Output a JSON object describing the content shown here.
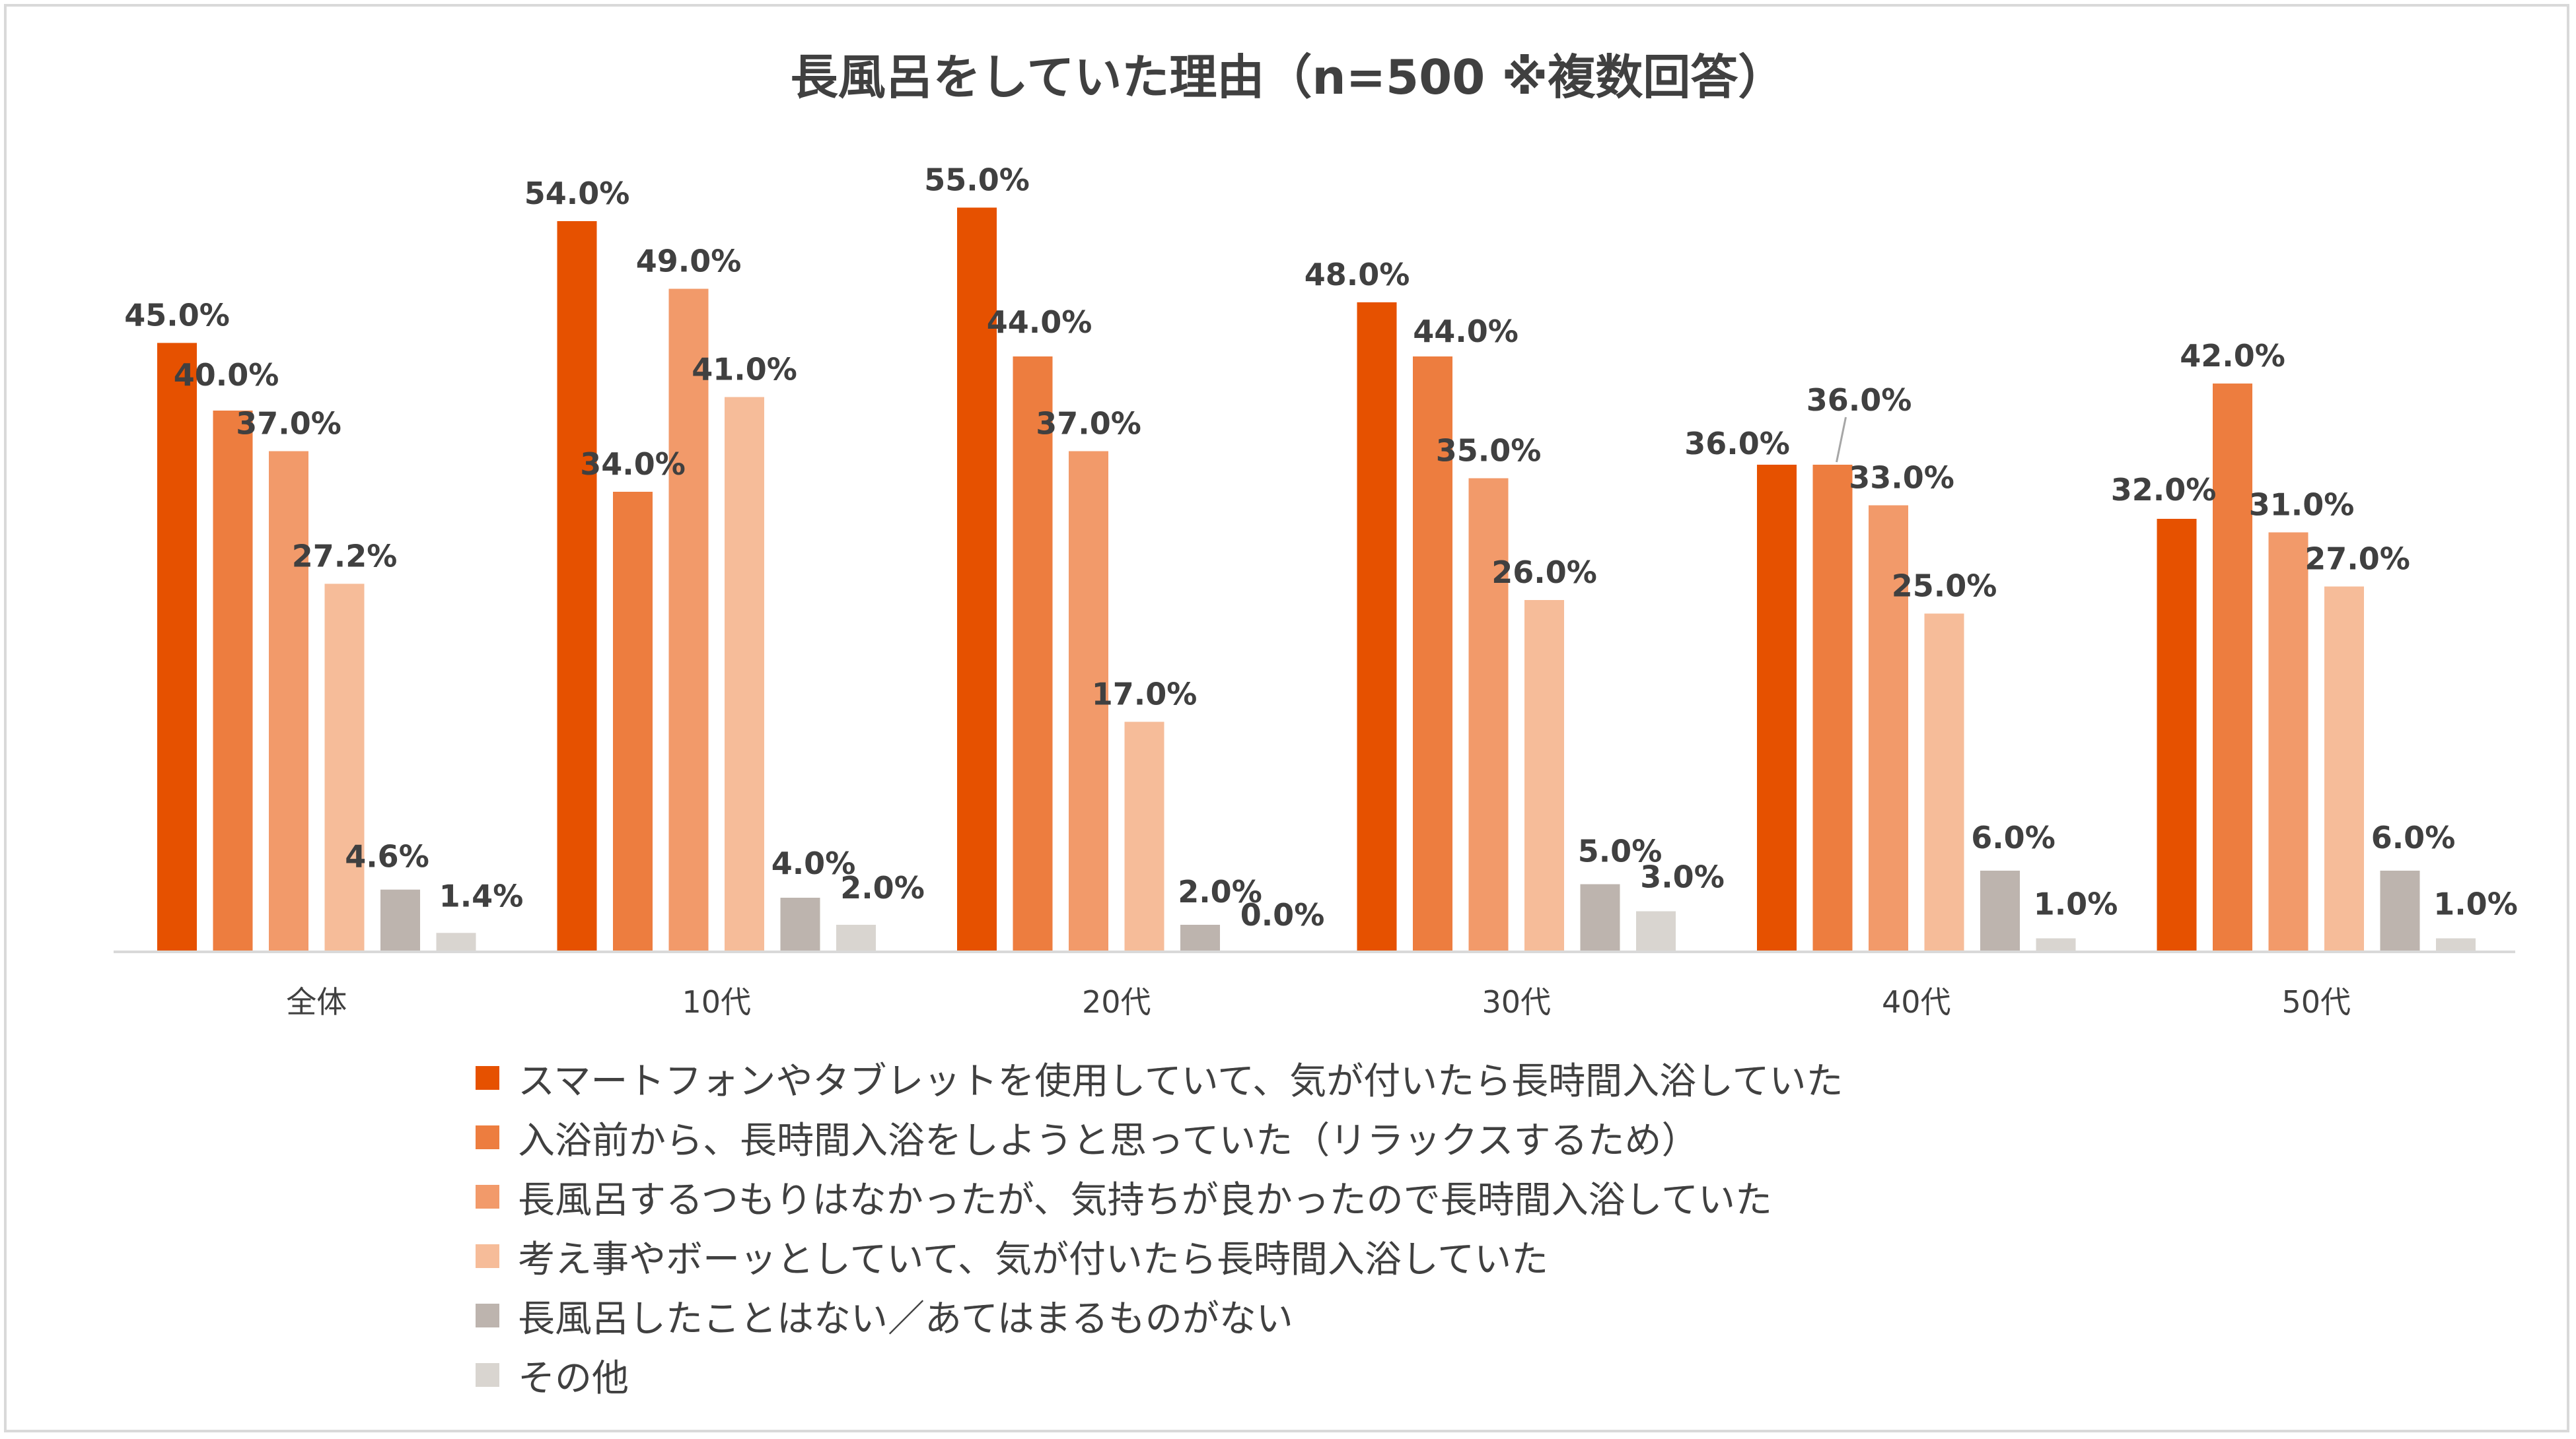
{
  "chart_data": {
    "type": "bar",
    "title": "長風呂をしていた理由（n=500 ※複数回答）",
    "categories": [
      "全体",
      "10代",
      "20代",
      "30代",
      "40代",
      "50代"
    ],
    "series": [
      {
        "name": "スマートフォンやタブレットを使用していて、気が付いたら長時間入浴していた",
        "color": "#E65100",
        "values": [
          45.0,
          54.0,
          55.0,
          48.0,
          36.0,
          32.0
        ]
      },
      {
        "name": "入浴前から、長時間入浴をしようと思っていた（リラックスするため）",
        "color": "#ED7D3F",
        "values": [
          40.0,
          34.0,
          44.0,
          44.0,
          36.0,
          42.0
        ]
      },
      {
        "name": "長風呂するつもりはなかったが、気持ちが良かったので長時間入浴していた",
        "color": "#F29A6A",
        "values": [
          37.0,
          49.0,
          37.0,
          35.0,
          33.0,
          31.0
        ]
      },
      {
        "name": "考え事やボーッとしていて、気が付いたら長時間入浴していた",
        "color": "#F6BC99",
        "values": [
          27.2,
          41.0,
          17.0,
          26.0,
          25.0,
          27.0
        ]
      },
      {
        "name": "長風呂したことはない／あてはまるものがない",
        "color": "#BDB4AE",
        "values": [
          4.6,
          4.0,
          2.0,
          5.0,
          6.0,
          6.0
        ]
      },
      {
        "name": "その他",
        "color": "#D9D5D0",
        "values": [
          1.4,
          2.0,
          0.0,
          3.0,
          1.0,
          1.0
        ]
      }
    ],
    "data_labels": [
      [
        "45.0%",
        "40.0%",
        "37.0%",
        "27.2%",
        "4.6%",
        "1.4%"
      ],
      [
        "54.0%",
        "34.0%",
        "49.0%",
        "41.0%",
        "4.0%",
        "2.0%"
      ],
      [
        "55.0%",
        "44.0%",
        "37.0%",
        "17.0%",
        "2.0%",
        "0.0%"
      ],
      [
        "48.0%",
        "44.0%",
        "35.0%",
        "26.0%",
        "5.0%",
        "3.0%"
      ],
      [
        "36.0%",
        "36.0%",
        "33.0%",
        "25.0%",
        "6.0%",
        "1.0%"
      ],
      [
        "32.0%",
        "42.0%",
        "31.0%",
        "27.0%",
        "6.0%",
        "1.0%"
      ]
    ],
    "ylim": [
      0,
      60
    ],
    "grid": false,
    "legend_position": "bottom",
    "axis_color": "#D9D9D9",
    "label_color": "#404040"
  }
}
